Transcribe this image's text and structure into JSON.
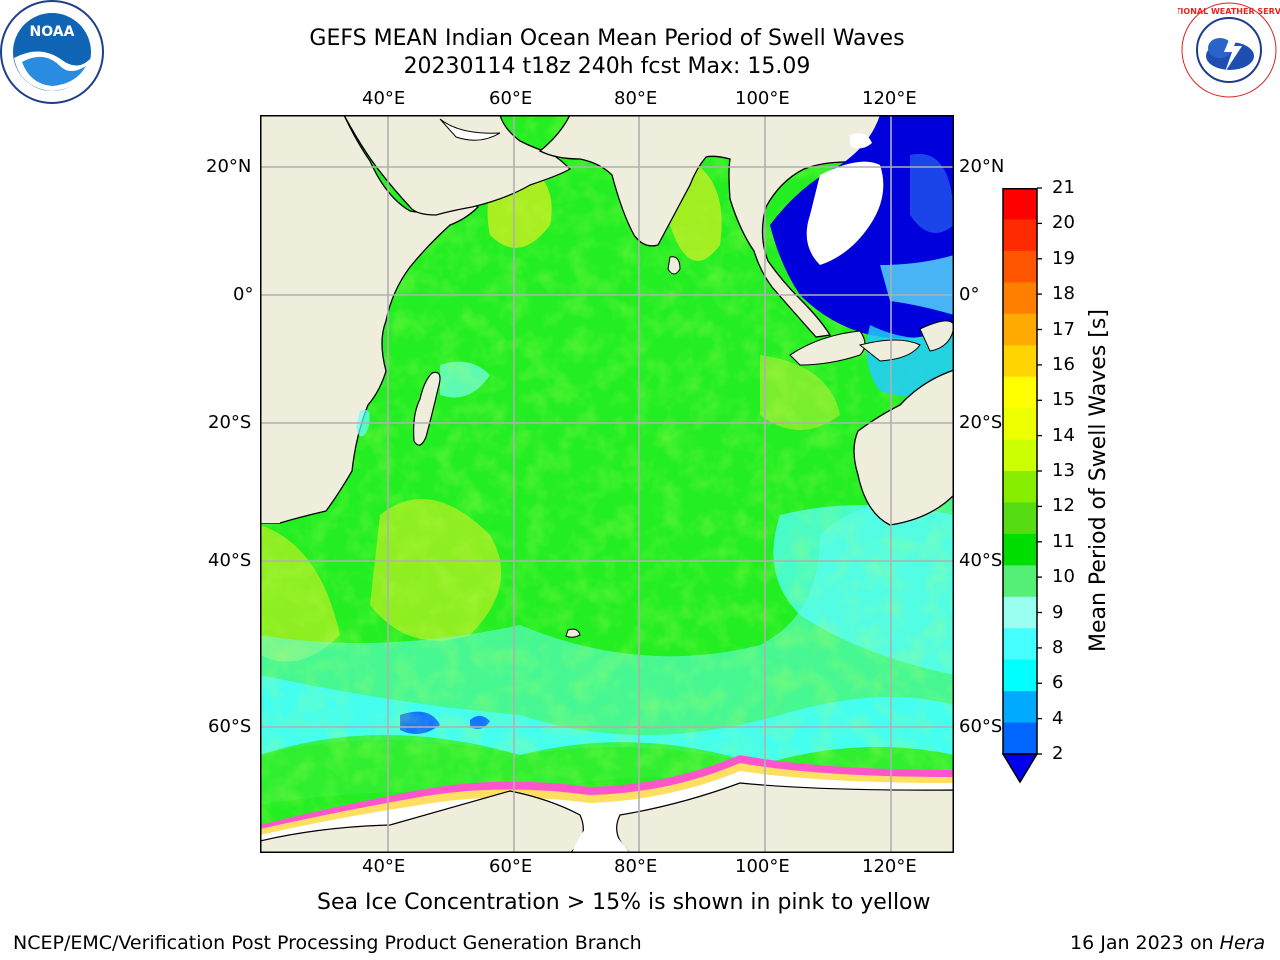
{
  "header": {
    "title_line1": "GEFS MEAN Indian Ocean Mean Period of Swell Waves",
    "title_line2": "20230114 t18z 240h fcst   Max: 15.09"
  },
  "logos": {
    "left": "NOAA",
    "right": "NATIONAL WEATHER SERVICE"
  },
  "map": {
    "lon_labels": [
      "40°E",
      "60°E",
      "80°E",
      "100°E",
      "120°E"
    ],
    "lat_labels": [
      "20°N",
      "0°",
      "20°S",
      "40°S",
      "60°S"
    ],
    "lon_range": [
      20,
      130
    ],
    "lat_range": [
      -77,
      28
    ],
    "colors": {
      "land": "#efeedd",
      "ocean_green": "#22ee22",
      "ocean_cyan": "#66ffff",
      "shallow_blue": "#0000dd",
      "ice": "#ff66cc"
    }
  },
  "colorbar": {
    "label": "Mean Period of Swell Waves [s]",
    "ticks": [
      "21",
      "20",
      "19",
      "18",
      "17",
      "16",
      "15",
      "14",
      "13",
      "12",
      "11",
      "10",
      "9",
      "8",
      "6",
      "4",
      "2"
    ],
    "colors": [
      "#ff0000",
      "#ff2a00",
      "#ff5500",
      "#ff8000",
      "#ffaa00",
      "#ffd400",
      "#ffff00",
      "#eeff00",
      "#ccff00",
      "#88ee00",
      "#55dd11",
      "#00dd00",
      "#55ee77",
      "#99ffee",
      "#44ffff",
      "#00ffff",
      "#00aaff",
      "#0066ff"
    ],
    "extend_color": "#0000ee"
  },
  "note": "Sea Ice Concentration > 15% is shown in pink to yellow",
  "footer": {
    "left": "NCEP/EMC/Verification Post Processing Product Generation Branch",
    "right_date": "16 Jan 2023 on",
    "right_machine": "Hera"
  }
}
